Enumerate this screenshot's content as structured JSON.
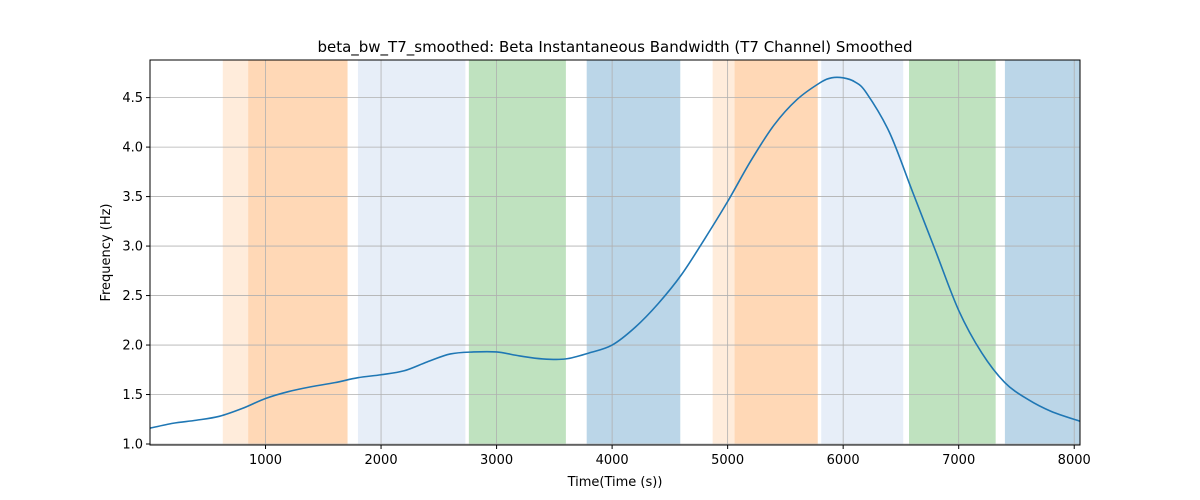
{
  "chart_data": {
    "type": "line",
    "title": "beta_bw_T7_smoothed: Beta Instantaneous Bandwidth (T7 Channel) Smoothed",
    "xlabel": "Time(Time (s))",
    "ylabel": "Frequency (Hz)",
    "xlim": [
      0,
      8050
    ],
    "ylim": [
      0.99,
      4.88
    ],
    "grid": true,
    "x_ticks": [
      1000,
      2000,
      3000,
      4000,
      5000,
      6000,
      7000,
      8000
    ],
    "y_ticks": [
      1.0,
      1.5,
      2.0,
      2.5,
      3.0,
      3.5,
      4.0,
      4.5
    ],
    "x_tick_labels": [
      "1000",
      "2000",
      "3000",
      "4000",
      "5000",
      "6000",
      "7000",
      "8000"
    ],
    "y_tick_labels": [
      "1.0",
      "1.5",
      "2.0",
      "2.5",
      "3.0",
      "3.5",
      "4.0",
      "4.5"
    ],
    "bands": [
      {
        "start": 630,
        "end": 850,
        "color": "#ff7f0e",
        "opacity": 0.15
      },
      {
        "start": 850,
        "end": 1710,
        "color": "#ff7f0e",
        "opacity": 0.3
      },
      {
        "start": 1800,
        "end": 2730,
        "color": "#aec7e8",
        "opacity": 0.3
      },
      {
        "start": 2760,
        "end": 3600,
        "color": "#2ca02c",
        "opacity": 0.3
      },
      {
        "start": 3780,
        "end": 4590,
        "color": "#1f77b4",
        "opacity": 0.3
      },
      {
        "start": 4870,
        "end": 5060,
        "color": "#ff7f0e",
        "opacity": 0.15
      },
      {
        "start": 5060,
        "end": 5780,
        "color": "#ff7f0e",
        "opacity": 0.3
      },
      {
        "start": 5810,
        "end": 6520,
        "color": "#aec7e8",
        "opacity": 0.3
      },
      {
        "start": 6570,
        "end": 7320,
        "color": "#2ca02c",
        "opacity": 0.3
      },
      {
        "start": 7400,
        "end": 8050,
        "color": "#1f77b4",
        "opacity": 0.3
      }
    ],
    "series": [
      {
        "color": "#1f77b4",
        "x": [
          0,
          200,
          400,
          600,
          800,
          1000,
          1200,
          1400,
          1600,
          1800,
          2000,
          2200,
          2400,
          2600,
          2800,
          3000,
          3200,
          3400,
          3600,
          3800,
          4000,
          4200,
          4400,
          4600,
          4800,
          5000,
          5200,
          5400,
          5600,
          5800,
          5900,
          6000,
          6100,
          6200,
          6400,
          6600,
          6800,
          7000,
          7200,
          7400,
          7600,
          7800,
          8050
        ],
        "y": [
          1.16,
          1.21,
          1.24,
          1.28,
          1.36,
          1.46,
          1.53,
          1.58,
          1.62,
          1.67,
          1.7,
          1.74,
          1.83,
          1.91,
          1.93,
          1.93,
          1.89,
          1.86,
          1.86,
          1.92,
          2.0,
          2.18,
          2.42,
          2.71,
          3.07,
          3.45,
          3.86,
          4.22,
          4.48,
          4.65,
          4.7,
          4.7,
          4.66,
          4.55,
          4.15,
          3.55,
          2.95,
          2.35,
          1.92,
          1.62,
          1.45,
          1.33,
          1.23
        ]
      }
    ]
  }
}
